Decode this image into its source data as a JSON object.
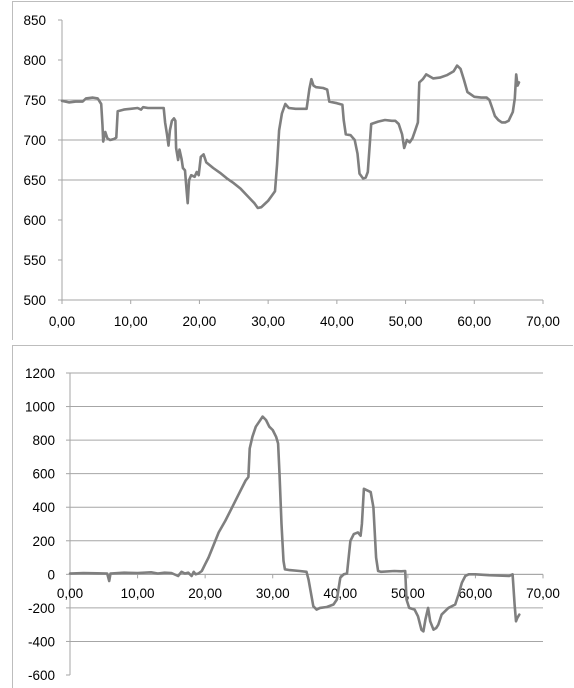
{
  "chart_data": [
    {
      "type": "line",
      "title": "",
      "xlabel": "",
      "ylabel": "",
      "xlim": [
        0,
        70
      ],
      "ylim": [
        500,
        850
      ],
      "x_ticks": [
        "0,00",
        "10,00",
        "20,00",
        "30,00",
        "40,00",
        "50,00",
        "60,00",
        "70,00"
      ],
      "y_ticks": [
        "500",
        "550",
        "600",
        "650",
        "700",
        "750",
        "800",
        "850"
      ],
      "gridlines": [
        650,
        700,
        750
      ],
      "grid": true,
      "legend": "none",
      "line_color": "#7f7f7f",
      "series": [
        {
          "name": "",
          "points": [
            [
              0.0,
              749
            ],
            [
              1.0,
              747
            ],
            [
              2.0,
              748
            ],
            [
              3.0,
              748
            ],
            [
              3.5,
              752
            ],
            [
              4.5,
              753
            ],
            [
              5.2,
              752
            ],
            [
              5.7,
              745
            ],
            [
              5.9,
              718
            ],
            [
              6.0,
              698
            ],
            [
              6.3,
              710
            ],
            [
              6.6,
              702
            ],
            [
              7.0,
              700
            ],
            [
              7.5,
              701
            ],
            [
              7.9,
              703
            ],
            [
              8.1,
              736
            ],
            [
              9.0,
              738
            ],
            [
              10.0,
              739
            ],
            [
              11.0,
              740
            ],
            [
              11.5,
              738
            ],
            [
              11.8,
              741
            ],
            [
              12.5,
              740
            ],
            [
              14.0,
              740
            ],
            [
              14.8,
              740
            ],
            [
              15.0,
              722
            ],
            [
              15.3,
              706
            ],
            [
              15.5,
              693
            ],
            [
              15.7,
              712
            ],
            [
              16.0,
              724
            ],
            [
              16.3,
              727
            ],
            [
              16.5,
              724
            ],
            [
              16.6,
              690
            ],
            [
              16.9,
              675
            ],
            [
              17.1,
              688
            ],
            [
              17.4,
              676
            ],
            [
              17.6,
              665
            ],
            [
              17.9,
              662
            ],
            [
              18.1,
              640
            ],
            [
              18.3,
              621
            ],
            [
              18.5,
              650
            ],
            [
              18.8,
              656
            ],
            [
              19.3,
              654
            ],
            [
              19.6,
              660
            ],
            [
              19.9,
              656
            ],
            [
              20.2,
              679
            ],
            [
              20.6,
              682
            ],
            [
              21.0,
              672
            ],
            [
              22.0,
              665
            ],
            [
              23.0,
              659
            ],
            [
              24.0,
              652
            ],
            [
              25.0,
              646
            ],
            [
              26.0,
              639
            ],
            [
              27.0,
              630
            ],
            [
              28.0,
              621
            ],
            [
              28.5,
              615
            ],
            [
              29.0,
              616
            ],
            [
              29.5,
              620
            ],
            [
              30.0,
              624
            ],
            [
              30.5,
              630
            ],
            [
              31.0,
              636
            ],
            [
              31.3,
              670
            ],
            [
              31.6,
              712
            ],
            [
              32.0,
              733
            ],
            [
              32.5,
              745
            ],
            [
              33.0,
              740
            ],
            [
              34.0,
              739
            ],
            [
              35.0,
              739
            ],
            [
              35.6,
              739
            ],
            [
              36.0,
              764
            ],
            [
              36.3,
              776
            ],
            [
              36.6,
              768
            ],
            [
              37.0,
              766
            ],
            [
              38.0,
              765
            ],
            [
              38.6,
              763
            ],
            [
              38.9,
              748
            ],
            [
              40.0,
              746
            ],
            [
              40.8,
              744
            ],
            [
              41.0,
              725
            ],
            [
              41.3,
              707
            ],
            [
              42.0,
              706
            ],
            [
              42.6,
              700
            ],
            [
              43.0,
              683
            ],
            [
              43.3,
              658
            ],
            [
              43.8,
              652
            ],
            [
              44.2,
              653
            ],
            [
              44.5,
              660
            ],
            [
              45.0,
              720
            ],
            [
              46.0,
              723
            ],
            [
              47.0,
              725
            ],
            [
              48.0,
              724
            ],
            [
              48.5,
              724
            ],
            [
              49.0,
              720
            ],
            [
              49.5,
              707
            ],
            [
              49.8,
              690
            ],
            [
              50.2,
              700
            ],
            [
              50.6,
              697
            ],
            [
              51.0,
              702
            ],
            [
              51.4,
              712
            ],
            [
              51.8,
              722
            ],
            [
              52.0,
              772
            ],
            [
              52.5,
              776
            ],
            [
              53.0,
              782
            ],
            [
              54.0,
              777
            ],
            [
              55.0,
              778
            ],
            [
              56.0,
              781
            ],
            [
              57.0,
              786
            ],
            [
              57.5,
              793
            ],
            [
              58.0,
              789
            ],
            [
              58.5,
              775
            ],
            [
              59.0,
              760
            ],
            [
              60.0,
              754
            ],
            [
              61.0,
              753
            ],
            [
              61.8,
              753
            ],
            [
              62.2,
              750
            ],
            [
              62.6,
              740
            ],
            [
              63.0,
              730
            ],
            [
              63.5,
              725
            ],
            [
              64.0,
              722
            ],
            [
              64.5,
              722
            ],
            [
              65.0,
              724
            ],
            [
              65.6,
              735
            ],
            [
              65.9,
              752
            ],
            [
              66.1,
              782
            ],
            [
              66.3,
              768
            ],
            [
              66.5,
              772
            ]
          ]
        }
      ]
    },
    {
      "type": "line",
      "title": "",
      "xlabel": "",
      "ylabel": "",
      "xlim": [
        0,
        70
      ],
      "ylim": [
        -600,
        1200
      ],
      "x_ticks": [
        "0,00",
        "10,00",
        "20,00",
        "30,00",
        "40,00",
        "50,00",
        "60,00",
        "70,00"
      ],
      "y_ticks": [
        "-600",
        "-400",
        "-200",
        "0",
        "200",
        "400",
        "600",
        "800",
        "1000",
        "1200"
      ],
      "gridlines": [
        -400,
        -200,
        0,
        200,
        400,
        600,
        800,
        1000,
        1200
      ],
      "grid": true,
      "legend": "none",
      "line_color": "#7f7f7f",
      "series": [
        {
          "name": "",
          "points": [
            [
              0.0,
              5
            ],
            [
              2.0,
              8
            ],
            [
              4.0,
              6
            ],
            [
              5.5,
              5
            ],
            [
              5.8,
              -40
            ],
            [
              6.0,
              5
            ],
            [
              8.0,
              10
            ],
            [
              10.0,
              8
            ],
            [
              12.0,
              12
            ],
            [
              13.0,
              5
            ],
            [
              14.0,
              10
            ],
            [
              15.0,
              8
            ],
            [
              16.0,
              -10
            ],
            [
              16.5,
              15
            ],
            [
              17.0,
              5
            ],
            [
              17.5,
              10
            ],
            [
              18.0,
              -10
            ],
            [
              18.3,
              15
            ],
            [
              18.6,
              0
            ],
            [
              19.0,
              5
            ],
            [
              19.5,
              20
            ],
            [
              20.0,
              60
            ],
            [
              20.5,
              100
            ],
            [
              21.0,
              150
            ],
            [
              22.0,
              250
            ],
            [
              23.0,
              320
            ],
            [
              24.0,
              400
            ],
            [
              25.0,
              480
            ],
            [
              26.0,
              560
            ],
            [
              26.4,
              580
            ],
            [
              26.6,
              750
            ],
            [
              27.0,
              820
            ],
            [
              27.5,
              880
            ],
            [
              28.0,
              910
            ],
            [
              28.5,
              940
            ],
            [
              29.0,
              920
            ],
            [
              29.5,
              880
            ],
            [
              30.0,
              860
            ],
            [
              30.5,
              820
            ],
            [
              30.8,
              780
            ],
            [
              31.0,
              600
            ],
            [
              31.3,
              300
            ],
            [
              31.6,
              80
            ],
            [
              31.8,
              30
            ],
            [
              32.5,
              25
            ],
            [
              34.0,
              20
            ],
            [
              35.0,
              15
            ],
            [
              35.3,
              -30
            ],
            [
              35.6,
              -100
            ],
            [
              36.0,
              -190
            ],
            [
              36.5,
              -210
            ],
            [
              37.0,
              -200
            ],
            [
              38.0,
              -195
            ],
            [
              39.0,
              -180
            ],
            [
              39.5,
              -150
            ],
            [
              40.0,
              -20
            ],
            [
              40.5,
              0
            ],
            [
              41.0,
              5
            ],
            [
              41.5,
              200
            ],
            [
              42.0,
              240
            ],
            [
              42.6,
              250
            ],
            [
              43.0,
              230
            ],
            [
              43.2,
              300
            ],
            [
              43.5,
              510
            ],
            [
              44.0,
              500
            ],
            [
              44.5,
              490
            ],
            [
              44.9,
              400
            ],
            [
              45.3,
              100
            ],
            [
              45.6,
              20
            ],
            [
              46.0,
              15
            ],
            [
              48.0,
              20
            ],
            [
              49.0,
              18
            ],
            [
              49.6,
              20
            ],
            [
              49.8,
              -150
            ],
            [
              50.2,
              -200
            ],
            [
              51.0,
              -210
            ],
            [
              51.5,
              -250
            ],
            [
              52.0,
              -330
            ],
            [
              52.3,
              -340
            ],
            [
              52.6,
              -270
            ],
            [
              53.0,
              -200
            ],
            [
              53.3,
              -280
            ],
            [
              53.8,
              -330
            ],
            [
              54.2,
              -320
            ],
            [
              54.5,
              -300
            ],
            [
              55.0,
              -240
            ],
            [
              56.0,
              -200
            ],
            [
              57.0,
              -180
            ],
            [
              57.5,
              -120
            ],
            [
              58.0,
              -50
            ],
            [
              58.5,
              -10
            ],
            [
              59.0,
              0
            ],
            [
              60.0,
              0
            ],
            [
              62.0,
              -5
            ],
            [
              64.0,
              -8
            ],
            [
              65.0,
              -10
            ],
            [
              65.5,
              0
            ],
            [
              65.8,
              -180
            ],
            [
              66.0,
              -280
            ],
            [
              66.2,
              -260
            ],
            [
              66.5,
              -240
            ]
          ]
        }
      ]
    }
  ]
}
